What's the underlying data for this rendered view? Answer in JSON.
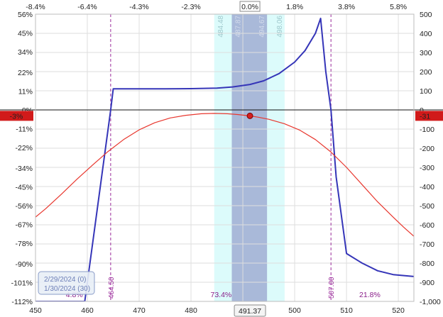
{
  "chart_data": {
    "type": "line",
    "title": "",
    "x_axis": {
      "range": [
        450,
        523
      ],
      "ticks": [
        450,
        460,
        470,
        480,
        490,
        500,
        510,
        520
      ],
      "current_price_label": "491.37",
      "current_price": 491.37
    },
    "top_axis": {
      "ticks": [
        {
          "label": "-8.4%",
          "x": 450
        },
        {
          "label": "-6.4%",
          "x": 460
        },
        {
          "label": "-4.3%",
          "x": 470
        },
        {
          "label": "-2.3%",
          "x": 480
        },
        {
          "label": "0.0%",
          "x": 491.37,
          "boxed": true
        },
        {
          "label": "1.8%",
          "x": 500
        },
        {
          "label": "3.8%",
          "x": 510
        },
        {
          "label": "5.8%",
          "x": 520
        }
      ]
    },
    "left_axis": {
      "range": [
        -112,
        56
      ],
      "ticks": [
        {
          "label": "56%",
          "v": 56
        },
        {
          "label": "45%",
          "v": 45
        },
        {
          "label": "34%",
          "v": 34
        },
        {
          "label": "22%",
          "v": 22
        },
        {
          "label": "11%",
          "v": 11
        },
        {
          "label": "0%",
          "v": 0
        },
        {
          "label": "-11%",
          "v": -11
        },
        {
          "label": "-22%",
          "v": -22
        },
        {
          "label": "-34%",
          "v": -34
        },
        {
          "label": "-45%",
          "v": -45
        },
        {
          "label": "-56%",
          "v": -56
        },
        {
          "label": "-67%",
          "v": -67
        },
        {
          "label": "-78%",
          "v": -78
        },
        {
          "label": "-90%",
          "v": -90
        },
        {
          "label": "-101%",
          "v": -101
        },
        {
          "label": "-112%",
          "v": -112
        }
      ],
      "marker_label": "-3%"
    },
    "right_axis": {
      "range": [
        -1000,
        500
      ],
      "ticks": [
        {
          "label": "500",
          "v": 500
        },
        {
          "label": "400",
          "v": 400
        },
        {
          "label": "300",
          "v": 300
        },
        {
          "label": "200",
          "v": 200
        },
        {
          "label": "100",
          "v": 100
        },
        {
          "label": "0",
          "v": 0
        },
        {
          "label": "-100",
          "v": -100
        },
        {
          "label": "-200",
          "v": -200
        },
        {
          "label": "-300",
          "v": -300
        },
        {
          "label": "-400",
          "v": -400
        },
        {
          "label": "-500",
          "v": -500
        },
        {
          "label": "-600",
          "v": -600
        },
        {
          "label": "-700",
          "v": -700
        },
        {
          "label": "-800",
          "v": -800
        },
        {
          "label": "-900",
          "v": -900
        },
        {
          "label": "-1,000",
          "v": -1000
        }
      ],
      "marker_label": "-31",
      "marker_value": -31
    },
    "shaded_bands": [
      {
        "from": 484.48,
        "to": 498.06,
        "color": "#dcfbfb",
        "labels": [
          "484.48",
          "498.06"
        ]
      },
      {
        "from": 487.87,
        "to": 494.67,
        "color": "#a9b9d9",
        "labels": [
          "487.87",
          "494.67"
        ]
      }
    ],
    "breakevens": [
      {
        "x": 464.5,
        "label": "464.50"
      },
      {
        "x": 507.0,
        "label": "507.00"
      }
    ],
    "probabilities": [
      {
        "label": "4.8%",
        "x": 457.5
      },
      {
        "label": "73.4%",
        "x": 485.8
      },
      {
        "label": "21.8%",
        "x": 514.5
      }
    ],
    "series": [
      {
        "name": "2/29/2024 (0)",
        "color": "#3535b8",
        "points": [
          [
            450,
            -1000
          ],
          [
            459.5,
            -1000
          ],
          [
            464.5,
            0
          ],
          [
            465.0,
            110
          ],
          [
            470,
            110
          ],
          [
            475,
            110
          ],
          [
            480,
            111
          ],
          [
            485,
            114
          ],
          [
            488,
            120
          ],
          [
            491.37,
            133
          ],
          [
            494,
            152
          ],
          [
            497,
            190
          ],
          [
            500,
            250
          ],
          [
            502,
            310
          ],
          [
            504,
            400
          ],
          [
            505,
            478
          ],
          [
            506,
            200
          ],
          [
            507,
            0
          ],
          [
            508,
            -350
          ],
          [
            510,
            -750
          ],
          [
            513,
            -800
          ],
          [
            516,
            -840
          ],
          [
            519,
            -860
          ],
          [
            523,
            -870
          ]
        ]
      },
      {
        "name": "1/30/2024 (30)",
        "color": "#e8372e",
        "points": [
          [
            450,
            -560
          ],
          [
            452,
            -515
          ],
          [
            455,
            -440
          ],
          [
            458,
            -362
          ],
          [
            461,
            -288
          ],
          [
            464,
            -217
          ],
          [
            467,
            -155
          ],
          [
            470,
            -104
          ],
          [
            473,
            -67
          ],
          [
            476,
            -42
          ],
          [
            479,
            -28
          ],
          [
            482,
            -20
          ],
          [
            484.5,
            -18
          ],
          [
            487,
            -20
          ],
          [
            489,
            -24
          ],
          [
            491.37,
            -31
          ],
          [
            493,
            -38
          ],
          [
            495,
            -49
          ],
          [
            498,
            -72
          ],
          [
            501,
            -106
          ],
          [
            504,
            -155
          ],
          [
            507,
            -220
          ],
          [
            510,
            -300
          ],
          [
            513,
            -390
          ],
          [
            516,
            -480
          ],
          [
            519,
            -560
          ],
          [
            521,
            -612
          ],
          [
            523,
            -660
          ]
        ]
      }
    ],
    "current_point": {
      "x": 491.37,
      "y": -31
    },
    "legend": {
      "placement": "bottom-left",
      "entries": [
        "2/29/2024 (0)",
        "1/30/2024 (30)"
      ]
    },
    "grid": true
  }
}
